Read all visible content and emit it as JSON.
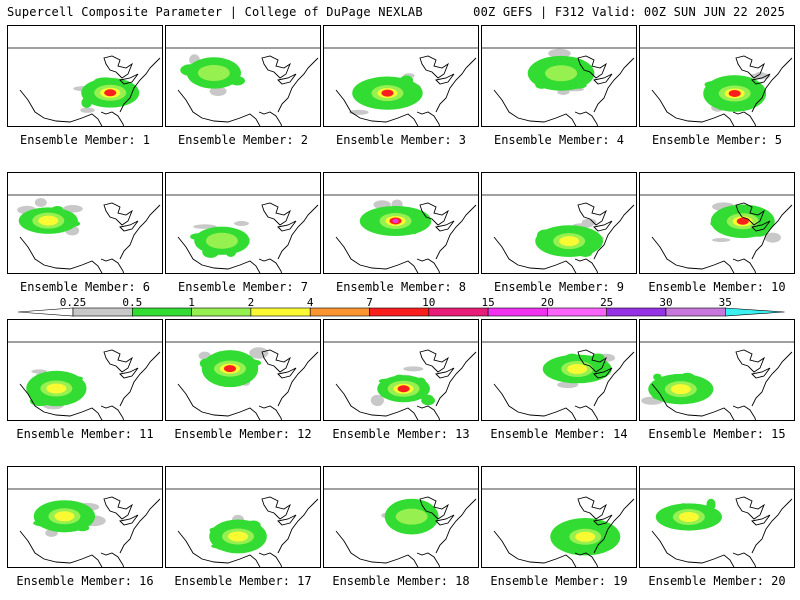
{
  "header": {
    "left": "Supercell Composite Parameter | College of DuPage NEXLAB",
    "right": "00Z GEFS | F312 Valid: 00Z SUN JUN 22 2025"
  },
  "colorbar": {
    "ticks": [
      "0.25",
      "0.5",
      "1",
      "2",
      "4",
      "7",
      "10",
      "15",
      "20",
      "25",
      "30",
      "35"
    ],
    "colors": [
      "#c8c8c8",
      "#32dc32",
      "#96f050",
      "#fafa32",
      "#fa9632",
      "#fa1e1e",
      "#e61e78",
      "#f032f0",
      "#fa64fa",
      "#9632e6",
      "#c878dc",
      "#3cf0f0"
    ]
  },
  "members": [
    {
      "label": "Ensemble Member: 1",
      "lvl": 3
    },
    {
      "label": "Ensemble Member: 2",
      "lvl": 1
    },
    {
      "label": "Ensemble Member: 3",
      "lvl": 3
    },
    {
      "label": "Ensemble Member: 4",
      "lvl": 1
    },
    {
      "label": "Ensemble Member: 5",
      "lvl": 3
    },
    {
      "label": "Ensemble Member: 6",
      "lvl": 2
    },
    {
      "label": "Ensemble Member: 7",
      "lvl": 1
    },
    {
      "label": "Ensemble Member: 8",
      "lvl": 4
    },
    {
      "label": "Ensemble Member: 9",
      "lvl": 2
    },
    {
      "label": "Ensemble Member: 10",
      "lvl": 3
    },
    {
      "label": "Ensemble Member: 11",
      "lvl": 2
    },
    {
      "label": "Ensemble Member: 12",
      "lvl": 3
    },
    {
      "label": "Ensemble Member: 13",
      "lvl": 3
    },
    {
      "label": "Ensemble Member: 14",
      "lvl": 2
    },
    {
      "label": "Ensemble Member: 15",
      "lvl": 2
    },
    {
      "label": "Ensemble Member: 16",
      "lvl": 2
    },
    {
      "label": "Ensemble Member: 17",
      "lvl": 2
    },
    {
      "label": "Ensemble Member: 18",
      "lvl": 1
    },
    {
      "label": "Ensemble Member: 19",
      "lvl": 2
    },
    {
      "label": "Ensemble Member: 20",
      "lvl": 2
    }
  ]
}
